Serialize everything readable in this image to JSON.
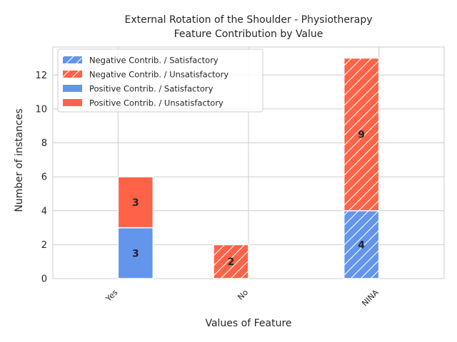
{
  "chart_data": {
    "type": "bar",
    "title_line1": "External Rotation of the Shoulder - Physiotherapy",
    "title_line2": "Feature Contribution by Value",
    "xlabel": "Values of Feature",
    "ylabel": "Number of instances",
    "categories": [
      "Yes",
      "No",
      "NINA"
    ],
    "ylim": [
      0,
      13.65
    ],
    "yticks": [
      0,
      2,
      4,
      6,
      8,
      10,
      12
    ],
    "grid": true,
    "legend_position": "upper-left",
    "colors": {
      "satisfactory": "#6495ED",
      "unsatisfactory": "#FF6347",
      "hatch": "#ffffff",
      "grid": "#cccccc"
    },
    "series": [
      {
        "name": "Negative Contrib. / Satisfactory",
        "group": "negative",
        "outcome": "satisfactory",
        "hatched": true,
        "values": [
          0,
          0,
          4
        ]
      },
      {
        "name": "Negative Contrib. / Unsatisfactory",
        "group": "negative",
        "outcome": "unsatisfactory",
        "hatched": true,
        "values": [
          0,
          2,
          9
        ]
      },
      {
        "name": "Positive Contrib. / Satisfactory",
        "group": "positive",
        "outcome": "satisfactory",
        "hatched": false,
        "values": [
          3,
          0,
          0
        ]
      },
      {
        "name": "Positive Contrib. / Unsatisfactory",
        "group": "positive",
        "outcome": "unsatisfactory",
        "hatched": false,
        "values": [
          3,
          0,
          0
        ]
      }
    ]
  }
}
